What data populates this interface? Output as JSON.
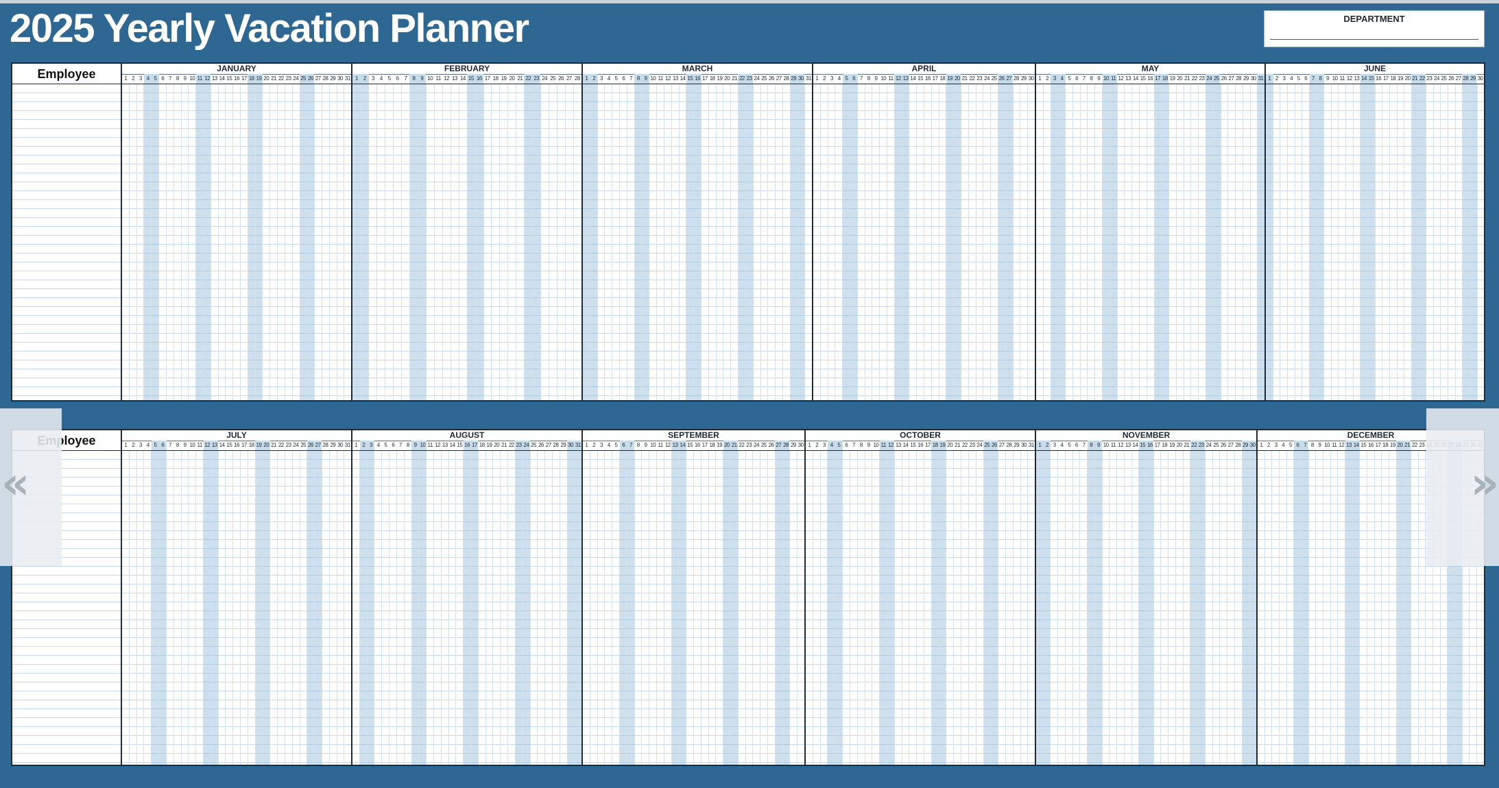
{
  "title": "2025 Yearly Vacation Planner",
  "department_label": "DEPARTMENT",
  "employee_header": "Employee",
  "colors": {
    "background": "#2e6792",
    "weekend_shade": "#c7dceb",
    "grid_line": "#c7d9e8",
    "border": "#1e2a36"
  },
  "row_count": 25,
  "year": 2025,
  "months": [
    {
      "name": "JANUARY",
      "days": 31
    },
    {
      "name": "FEBRUARY",
      "days": 28
    },
    {
      "name": "MARCH",
      "days": 31
    },
    {
      "name": "APRIL",
      "days": 30
    },
    {
      "name": "MAY",
      "days": 31
    },
    {
      "name": "JUNE",
      "days": 30
    },
    {
      "name": "JULY",
      "days": 31
    },
    {
      "name": "AUGUST",
      "days": 31
    },
    {
      "name": "SEPTEMBER",
      "days": 30
    },
    {
      "name": "OCTOBER",
      "days": 31
    },
    {
      "name": "NOVEMBER",
      "days": 30
    },
    {
      "name": "DECEMBER",
      "days": 31
    }
  ],
  "nav": {
    "prev_icon": "chevron-double-left-icon",
    "next_icon": "chevron-double-right-icon",
    "prev_glyph": "«",
    "next_glyph": "»"
  }
}
